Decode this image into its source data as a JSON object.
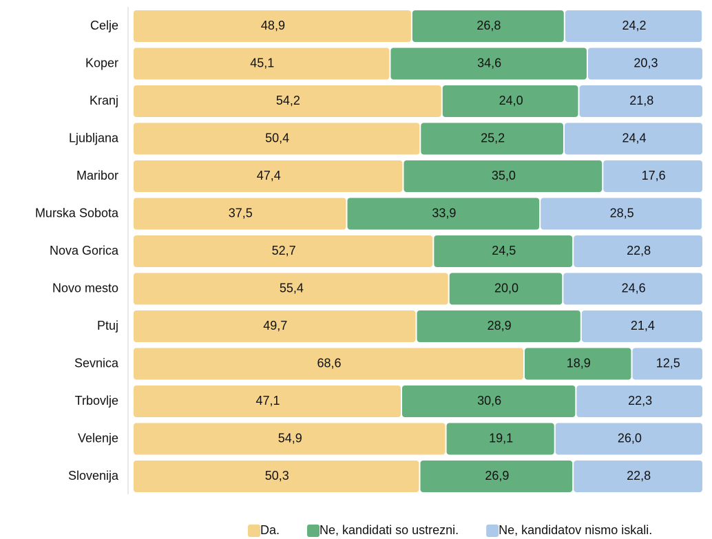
{
  "chart_data": {
    "type": "stacked_barh",
    "categories": [
      "Celje",
      "Koper",
      "Kranj",
      "Ljubljana",
      "Maribor",
      "Murska Sobota",
      "Nova Gorica",
      "Novo mesto",
      "Ptuj",
      "Sevnica",
      "Trbovlje",
      "Velenje",
      "Slovenija"
    ],
    "xlim": [
      0,
      100
    ],
    "legend": "bottom",
    "series": [
      {
        "name": "Da.",
        "color": "#f5d38a",
        "values": [
          48.9,
          45.1,
          54.2,
          50.4,
          47.4,
          37.5,
          52.7,
          55.4,
          49.7,
          68.6,
          47.1,
          54.9,
          50.3
        ],
        "value_labels": [
          "48,9",
          "45,1",
          "54,2",
          "50,4",
          "47,4",
          "37,5",
          "52,7",
          "55,4",
          "49,7",
          "68,6",
          "47,1",
          "54,9",
          "50,3"
        ]
      },
      {
        "name": "Ne, kandidati so ustrezni.",
        "color": "#63b07e",
        "values": [
          26.8,
          34.6,
          24.0,
          25.2,
          35.0,
          33.9,
          24.5,
          20.0,
          28.9,
          18.9,
          30.6,
          19.1,
          26.9
        ],
        "value_labels": [
          "26,8",
          "34,6",
          "24,0",
          "25,2",
          "35,0",
          "33,9",
          "24,5",
          "20,0",
          "28,9",
          "18,9",
          "30,6",
          "19,1",
          "26,9"
        ]
      },
      {
        "name": "Ne, kandidatov nismo iskali.",
        "color": "#adc9ea",
        "values": [
          24.2,
          20.3,
          21.8,
          24.4,
          17.6,
          28.5,
          22.8,
          24.6,
          21.4,
          12.5,
          22.3,
          26.0,
          22.8
        ],
        "value_labels": [
          "24,2",
          "20,3",
          "21,8",
          "24,4",
          "17,6",
          "28,5",
          "22,8",
          "24,6",
          "21,4",
          "12,5",
          "22,3",
          "26,0",
          "22,8"
        ]
      }
    ]
  }
}
